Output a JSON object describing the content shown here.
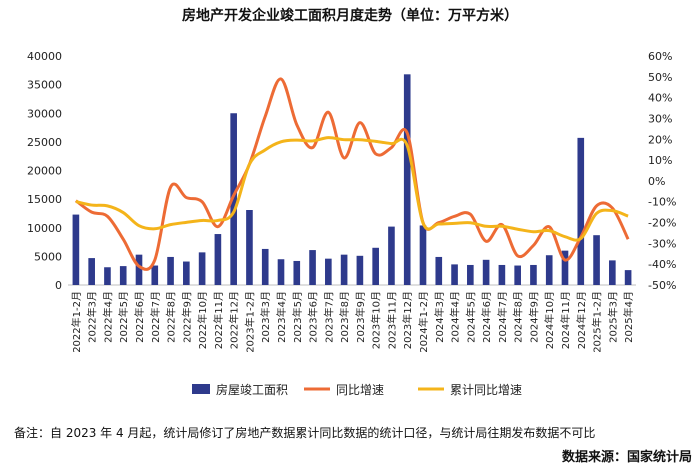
{
  "chart_data": {
    "type": "bar+line",
    "title": "房地产开发企业竣工面积月度走势（单位：万平方米）",
    "categories": [
      "2022年1-2月",
      "2022年3月",
      "2022年4月",
      "2022年5月",
      "2022年6月",
      "2022年7月",
      "2022年8月",
      "2022年9月",
      "2022年10月",
      "2022年11月",
      "2022年12月",
      "2023年1-2月",
      "2023年3月",
      "2023年4月",
      "2023年5月",
      "2023年6月",
      "2023年7月",
      "2023年8月",
      "2023年9月",
      "2023年10月",
      "2023年11月",
      "2023年12月",
      "2024年1-2月",
      "2024年3月",
      "2024年4月",
      "2024年5月",
      "2024年6月",
      "2024年7月",
      "2024年8月",
      "2024年9月",
      "2024年10月",
      "2024年11月",
      "2024年12月",
      "2025年1-2月",
      "2025年3月",
      "2025年4月"
    ],
    "left_axis": {
      "min": 0,
      "max": 40000,
      "step": 5000,
      "ticks": [
        "0",
        "5000",
        "10000",
        "15000",
        "20000",
        "25000",
        "30000",
        "35000",
        "40000"
      ]
    },
    "right_axis": {
      "min": -50,
      "max": 60,
      "step": 10,
      "ticks": [
        "-50%",
        "-40%",
        "-30%",
        "-20%",
        "-10%",
        "0%",
        "10%",
        "20%",
        "30%",
        "40%",
        "50%",
        "60%"
      ]
    },
    "series": [
      {
        "name": "房屋竣工面积",
        "type": "bar",
        "axis": "left",
        "color": "#2E3A8C",
        "values": [
          12300,
          4700,
          3100,
          3300,
          5300,
          3400,
          4900,
          4100,
          5700,
          8900,
          30000,
          13100,
          6300,
          4500,
          4200,
          6100,
          4600,
          5300,
          5100,
          6500,
          10200,
          36800,
          10400,
          4900,
          3600,
          3500,
          4400,
          3500,
          3400,
          3500,
          5200,
          6000,
          25700,
          8700,
          4300,
          2600
        ]
      },
      {
        "name": "同比增速",
        "type": "line",
        "axis": "right",
        "color": "#ED6B35",
        "values": [
          -9.5,
          -15,
          -17,
          -28,
          -41,
          -38,
          -3,
          -8,
          -10,
          -22,
          -7,
          8,
          31,
          49,
          27,
          16,
          33,
          11,
          28,
          13,
          16,
          23,
          -20,
          -20,
          -17,
          -16,
          -29,
          -21,
          -36,
          -31,
          -22,
          -38,
          -27,
          -12,
          -13,
          -28
        ]
      },
      {
        "name": "累计同比增速",
        "type": "line",
        "axis": "right",
        "color": "#F4B41A",
        "values": [
          -9.9,
          -11.6,
          -12,
          -15.2,
          -21.5,
          -23,
          -21,
          -19.9,
          -19,
          -19,
          -15,
          8,
          14.9,
          18.8,
          19.6,
          19.2,
          20.8,
          19.8,
          19.8,
          19.0,
          17.9,
          17.0,
          -20.2,
          -20.7,
          -20.4,
          -20.1,
          -21.8,
          -21.8,
          -23.2,
          -24.4,
          -23.9,
          -26.8,
          -27.7,
          -15.6,
          -14.3,
          -16.9
        ]
      }
    ],
    "legend_position": "bottom"
  },
  "footer": {
    "note": "备注：自 2023 年 4 月起，统计局修订了房地产数据累计同比数据的统计口径，与统计局往期发布数据不可比",
    "source": "数据来源：国家统计局"
  }
}
